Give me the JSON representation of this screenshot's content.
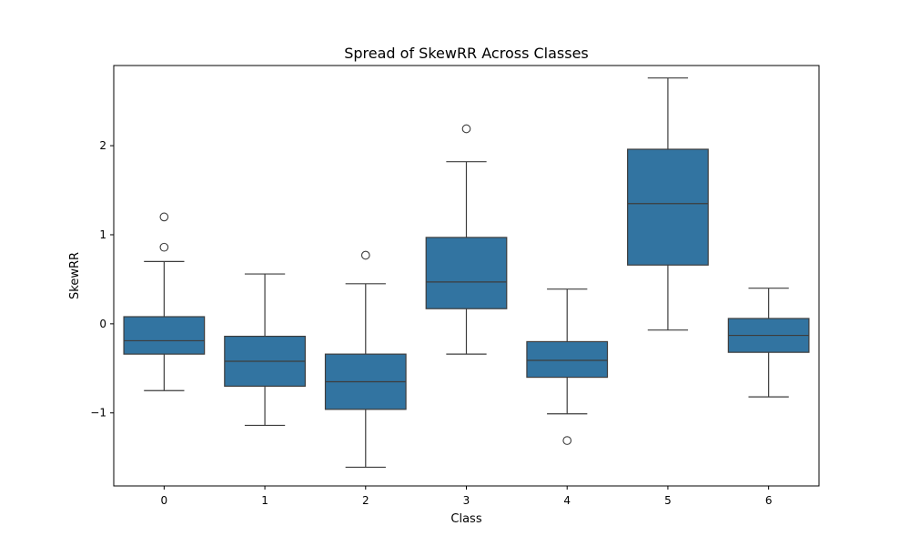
{
  "chart_data": {
    "type": "box",
    "title": "Spread of SkewRR Across Classes",
    "xlabel": "Class",
    "ylabel": "SkewRR",
    "categories": [
      "0",
      "1",
      "2",
      "3",
      "4",
      "5",
      "6"
    ],
    "yticks": [
      -1,
      0,
      1,
      2
    ],
    "ytick_labels": [
      "−1",
      "0",
      "1",
      "2"
    ],
    "ylim": [
      -1.82,
      2.9
    ],
    "grid": false,
    "legend": "none",
    "box_color": "#3274a1",
    "line_color": "#3d3d3d",
    "boxes": [
      {
        "category": "0",
        "whisker_low": -0.75,
        "q1": -0.34,
        "median": -0.19,
        "q3": 0.08,
        "whisker_high": 0.7,
        "outliers": [
          1.2,
          0.86
        ]
      },
      {
        "category": "1",
        "whisker_low": -1.14,
        "q1": -0.7,
        "median": -0.42,
        "q3": -0.14,
        "whisker_high": 0.56,
        "outliers": []
      },
      {
        "category": "2",
        "whisker_low": -1.61,
        "q1": -0.96,
        "median": -0.65,
        "q3": -0.34,
        "whisker_high": 0.45,
        "outliers": [
          0.77
        ]
      },
      {
        "category": "3",
        "whisker_low": -0.34,
        "q1": 0.17,
        "median": 0.47,
        "q3": 0.97,
        "whisker_high": 1.82,
        "outliers": [
          2.19
        ]
      },
      {
        "category": "4",
        "whisker_low": -1.01,
        "q1": -0.6,
        "median": -0.41,
        "q3": -0.2,
        "whisker_high": 0.39,
        "outliers": [
          -1.31
        ]
      },
      {
        "category": "5",
        "whisker_low": -0.07,
        "q1": 0.66,
        "median": 1.35,
        "q3": 1.96,
        "whisker_high": 2.76,
        "outliers": []
      },
      {
        "category": "6",
        "whisker_low": -0.82,
        "q1": -0.32,
        "median": -0.13,
        "q3": 0.06,
        "whisker_high": 0.4,
        "outliers": []
      }
    ]
  }
}
